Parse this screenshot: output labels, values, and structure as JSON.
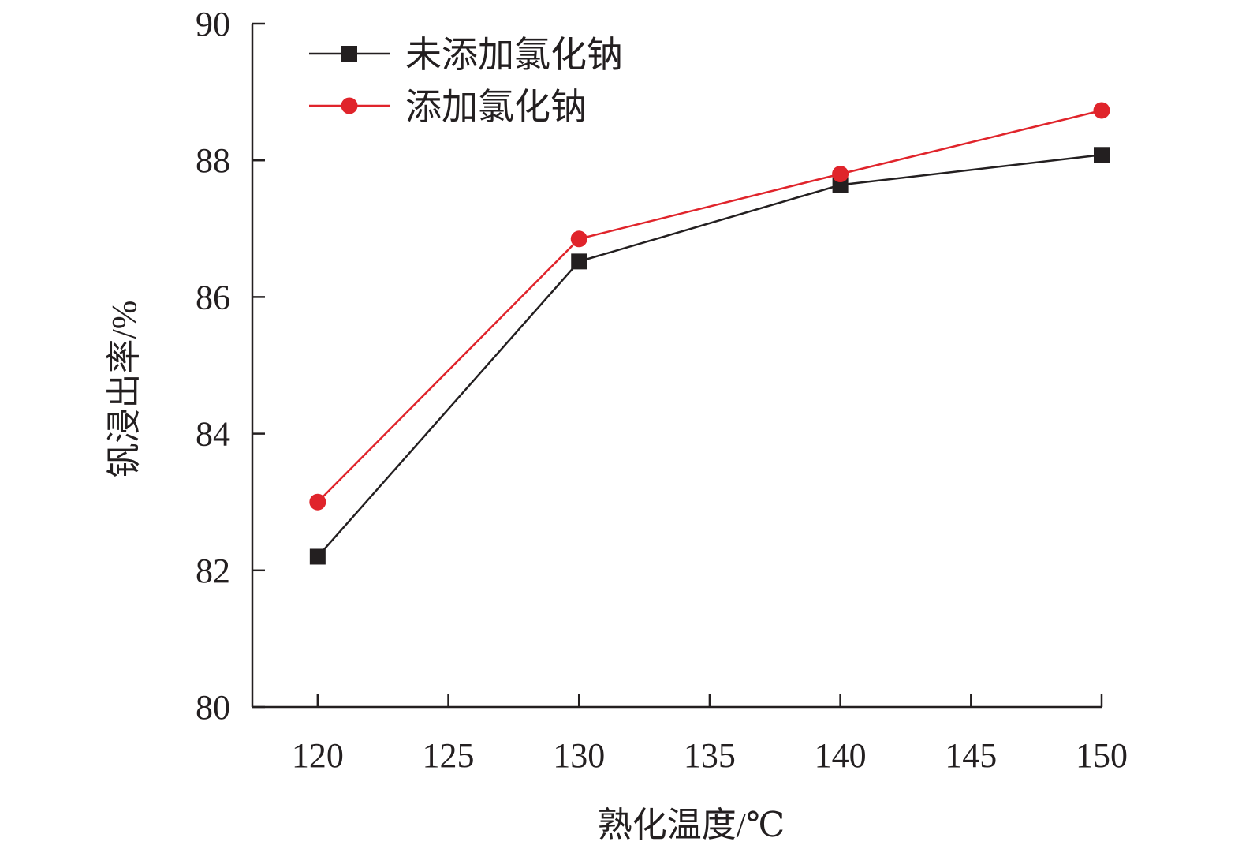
{
  "chart_data": {
    "type": "line",
    "title": "",
    "xlabel": "熟化温度/℃",
    "ylabel": "钒浸出率/%",
    "xlim": [
      117.5,
      150
    ],
    "ylim": [
      80,
      90
    ],
    "x_ticks": [
      120,
      125,
      130,
      135,
      140,
      145,
      150
    ],
    "y_ticks": [
      80,
      82,
      84,
      86,
      88,
      90
    ],
    "grid": false,
    "legend_position": "top-left",
    "series": [
      {
        "name": "未添加氯化钠",
        "color": "#231f20",
        "marker": "square",
        "x": [
          120,
          130,
          140,
          150
        ],
        "values": [
          82.2,
          86.52,
          87.64,
          88.08
        ]
      },
      {
        "name": "添加氯化钠",
        "color": "#e0242b",
        "marker": "circle",
        "x": [
          120,
          130,
          140,
          150
        ],
        "values": [
          83.0,
          86.85,
          87.8,
          88.73
        ]
      }
    ]
  }
}
